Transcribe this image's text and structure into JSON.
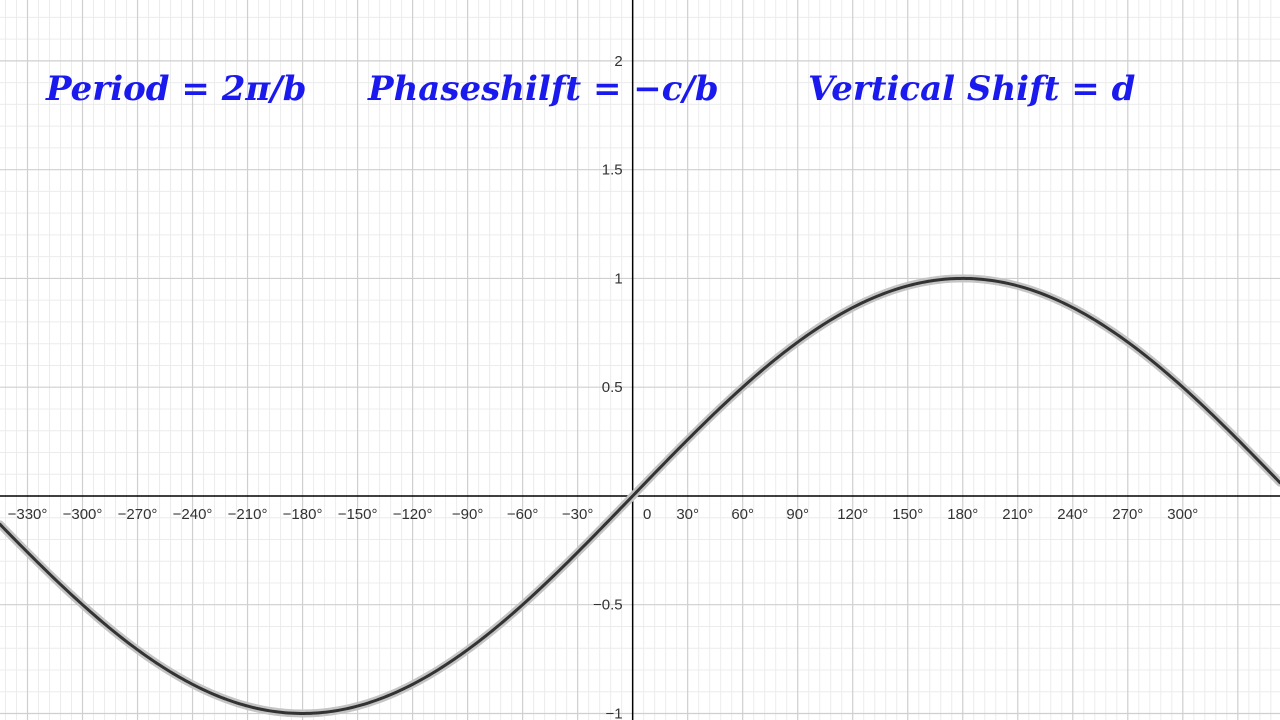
{
  "chart_data": {
    "type": "line",
    "title": "",
    "xlabel": "",
    "ylabel": "",
    "x_unit": "degrees",
    "xlim": [
      -345,
      353
    ],
    "ylim": [
      -1.03,
      2.28
    ],
    "grid": true,
    "minor_grid": true,
    "x_ticks": [
      -330,
      -300,
      -270,
      -240,
      -210,
      -180,
      -150,
      -120,
      -90,
      -60,
      -30,
      30,
      60,
      90,
      120,
      150,
      180,
      210,
      240,
      270,
      300
    ],
    "x_tick_labels": [
      "−330°",
      "−300°",
      "−270°",
      "−240°",
      "−210°",
      "−180°",
      "−150°",
      "−120°",
      "−90°",
      "−60°",
      "−30°",
      "30°",
      "60°",
      "90°",
      "120°",
      "150°",
      "180°",
      "210°",
      "240°",
      "270°",
      "300°"
    ],
    "y_ticks": [
      -1,
      -0.5,
      0.5,
      1,
      1.5,
      2
    ],
    "y_tick_labels": [
      "−1",
      "−0.5",
      "0.5",
      "1",
      "1.5",
      "2"
    ],
    "origin_label": "0",
    "series": [
      {
        "function": "y = sin(x/2)",
        "x": [
          -345,
          -330,
          -300,
          -270,
          -240,
          -210,
          -180,
          -150,
          -120,
          -90,
          -60,
          -30,
          0,
          30,
          60,
          90,
          120,
          150,
          180,
          210,
          240,
          270,
          300,
          330,
          353
        ],
        "values": [
          -0.131,
          -0.259,
          -0.5,
          -0.707,
          -0.866,
          -0.966,
          -1,
          -0.966,
          -0.866,
          -0.707,
          -0.5,
          -0.259,
          0,
          0.259,
          0.5,
          0.707,
          0.866,
          0.966,
          1,
          0.966,
          0.866,
          0.707,
          0.5,
          0.259,
          0.061
        ]
      }
    ],
    "annotations": [
      {
        "text": "Period = 2π/b"
      },
      {
        "text": "Phaseshilft = −c/b"
      },
      {
        "text": "Vertical Shift = d"
      }
    ]
  },
  "colors": {
    "curve": "#333333",
    "curve_halo": "#c4c4c4",
    "annotation": "#1a1aee",
    "major_grid": "#cfcfcf",
    "minor_grid": "#ececec",
    "axis": "#000000"
  }
}
